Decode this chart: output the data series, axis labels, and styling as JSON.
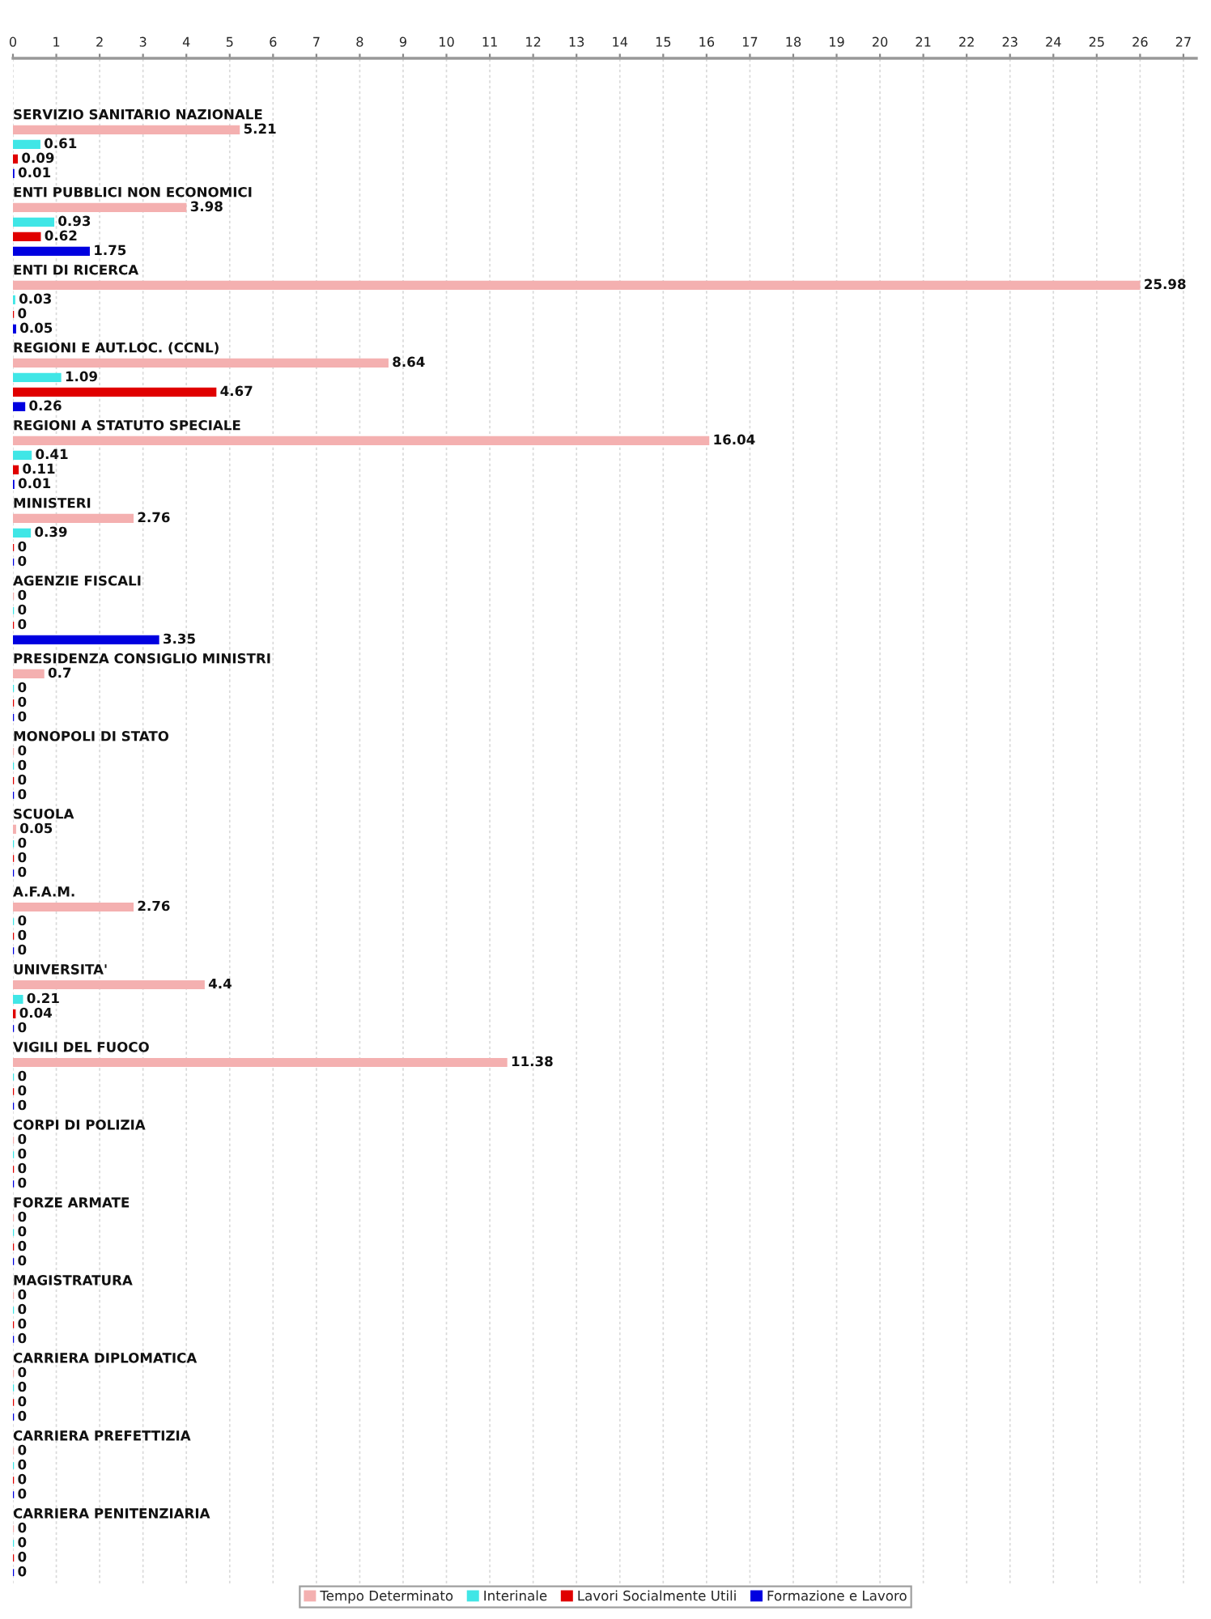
{
  "chart_data": {
    "type": "bar",
    "orientation": "horizontal",
    "categories": [
      "SERVIZIO SANITARIO NAZIONALE",
      "ENTI PUBBLICI NON ECONOMICI",
      "ENTI DI RICERCA",
      "REGIONI E AUT.LOC. (CCNL)",
      "REGIONI A STATUTO SPECIALE",
      "MINISTERI",
      "AGENZIE FISCALI",
      "PRESIDENZA CONSIGLIO MINISTRI",
      "MONOPOLI DI STATO",
      "SCUOLA",
      "A.F.A.M.",
      "UNIVERSITA'",
      "VIGILI DEL FUOCO",
      "CORPI DI POLIZIA",
      "FORZE ARMATE",
      "MAGISTRATURA",
      "CARRIERA DIPLOMATICA",
      "CARRIERA PREFETTIZIA",
      "CARRIERA PENITENZIARIA"
    ],
    "series": [
      {
        "name": "Tempo Determinato",
        "color": "#f4b0b0",
        "values": [
          5.21,
          3.98,
          25.98,
          8.64,
          16.04,
          2.76,
          0,
          0.7,
          0,
          0.05,
          2.76,
          4.4,
          11.38,
          0,
          0,
          0,
          0,
          0,
          0
        ]
      },
      {
        "name": "Interinale",
        "color": "#40e6e6",
        "values": [
          0.61,
          0.93,
          0.03,
          1.09,
          0.41,
          0.39,
          0,
          0,
          0,
          0,
          0,
          0.21,
          0,
          0,
          0,
          0,
          0,
          0,
          0
        ]
      },
      {
        "name": "Lavori Socialmente Utili",
        "color": "#e00000",
        "values": [
          0.09,
          0.62,
          0,
          4.67,
          0.11,
          0,
          0,
          0,
          0,
          0,
          0,
          0.04,
          0,
          0,
          0,
          0,
          0,
          0,
          0
        ]
      },
      {
        "name": "Formazione e Lavoro",
        "color": "#0000e0",
        "values": [
          0.01,
          1.75,
          0.05,
          0.26,
          0.01,
          0,
          3.35,
          0,
          0,
          0,
          0,
          0,
          0,
          0,
          0,
          0,
          0,
          0,
          0
        ]
      }
    ],
    "xlim": [
      0,
      27.3
    ],
    "xticks": [
      0,
      1,
      2,
      3,
      4,
      5,
      6,
      7,
      8,
      9,
      10,
      11,
      12,
      13,
      14,
      15,
      16,
      17,
      18,
      19,
      20,
      21,
      22,
      23,
      24,
      25,
      26,
      27
    ],
    "grid": "x",
    "legend": "bottom",
    "data_labels": true
  }
}
